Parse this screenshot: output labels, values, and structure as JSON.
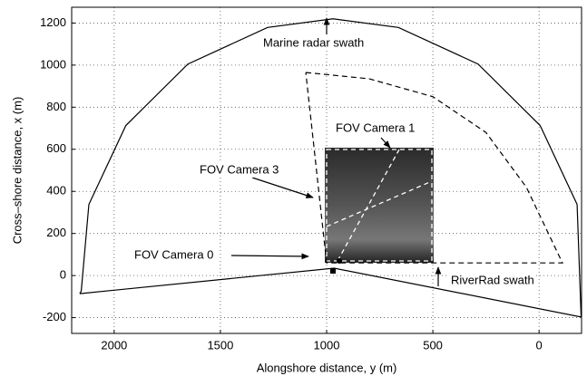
{
  "chart_data": {
    "type": "line",
    "xlabel": "Alongshore distance, y (m)",
    "ylabel": "Cross–shore distance, x (m)",
    "xlim": [
      2200,
      -200
    ],
    "ylim": [
      -275,
      1275
    ],
    "xticks": [
      2000,
      1500,
      1000,
      500,
      0
    ],
    "yticks": [
      -200,
      0,
      200,
      400,
      600,
      800,
      1000,
      1200
    ],
    "grid": true,
    "series": [
      {
        "color": "#000000",
        "line_style": "solid",
        "x": [
          2162,
          2155,
          2119,
          1945,
          1653,
          1278,
          970,
          662,
          287,
          -5,
          -179,
          -198,
          965,
          2162
        ],
        "values": [
          -86,
          -74,
          338,
          713,
          1005,
          1179,
          1220,
          1179,
          1005,
          713,
          338,
          -197,
          35,
          -86
        ]
      },
      {
        "color": "#000000",
        "line_style": "dashed",
        "x": [
          1098,
          800,
          500,
          250,
          60,
          -110,
          480,
          1000,
          1098
        ],
        "values": [
          965,
          935,
          850,
          680,
          420,
          60,
          60,
          60,
          965
        ]
      }
    ],
    "annotations": [
      "Marine radar swath",
      "FOV Camera 1",
      "FOV Camera 3",
      "FOV Camera 0",
      "RiverRad swath"
    ]
  }
}
